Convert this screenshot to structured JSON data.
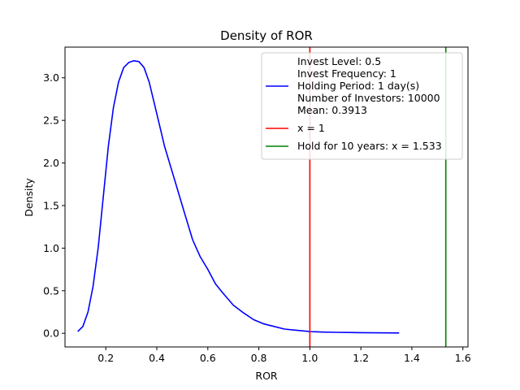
{
  "chart_data": {
    "type": "line",
    "title": "Density of ROR",
    "xlabel": "ROR",
    "ylabel": "Density",
    "xlim": [
      0.04,
      1.62
    ],
    "ylim": [
      -0.16,
      3.36
    ],
    "xticks": [
      0.2,
      0.4,
      0.6,
      0.8,
      1.0,
      1.2,
      1.4,
      1.6
    ],
    "xtick_labels": [
      "0.2",
      "0.4",
      "0.6",
      "0.8",
      "1.0",
      "1.2",
      "1.4",
      "1.6"
    ],
    "yticks": [
      0.0,
      0.5,
      1.0,
      1.5,
      2.0,
      2.5,
      3.0
    ],
    "ytick_labels": [
      "0.0",
      "0.5",
      "1.0",
      "1.5",
      "2.0",
      "2.5",
      "3.0"
    ],
    "grid": false,
    "legend_position": "top-right",
    "series": [
      {
        "name": "Invest Level: 0.5\nInvest Frequency: 1\nHolding Period: 1 day(s)\nNumber of Investors: 10000\nMean: 0.3913",
        "color": "#0000ff",
        "kind": "curve",
        "x": [
          0.09,
          0.11,
          0.13,
          0.15,
          0.17,
          0.19,
          0.21,
          0.23,
          0.25,
          0.27,
          0.29,
          0.31,
          0.33,
          0.35,
          0.37,
          0.39,
          0.41,
          0.43,
          0.45,
          0.48,
          0.51,
          0.54,
          0.57,
          0.6,
          0.63,
          0.66,
          0.7,
          0.74,
          0.78,
          0.82,
          0.86,
          0.9,
          0.95,
          1.0,
          1.05,
          1.1,
          1.15,
          1.2,
          1.25,
          1.3,
          1.35
        ],
        "y": [
          0.02,
          0.08,
          0.25,
          0.55,
          1.0,
          1.6,
          2.2,
          2.65,
          2.95,
          3.12,
          3.18,
          3.2,
          3.19,
          3.12,
          2.95,
          2.7,
          2.45,
          2.2,
          2.0,
          1.7,
          1.4,
          1.1,
          0.9,
          0.75,
          0.58,
          0.47,
          0.33,
          0.24,
          0.16,
          0.11,
          0.08,
          0.05,
          0.035,
          0.02,
          0.015,
          0.012,
          0.01,
          0.008,
          0.006,
          0.005,
          0.004
        ]
      },
      {
        "name": "x = 1",
        "color": "#ff0000",
        "kind": "vline",
        "x": 1.0
      },
      {
        "name": "Hold for 10 years: x = 1.533",
        "color": "#008000",
        "kind": "vline",
        "x": 1.533
      }
    ]
  }
}
